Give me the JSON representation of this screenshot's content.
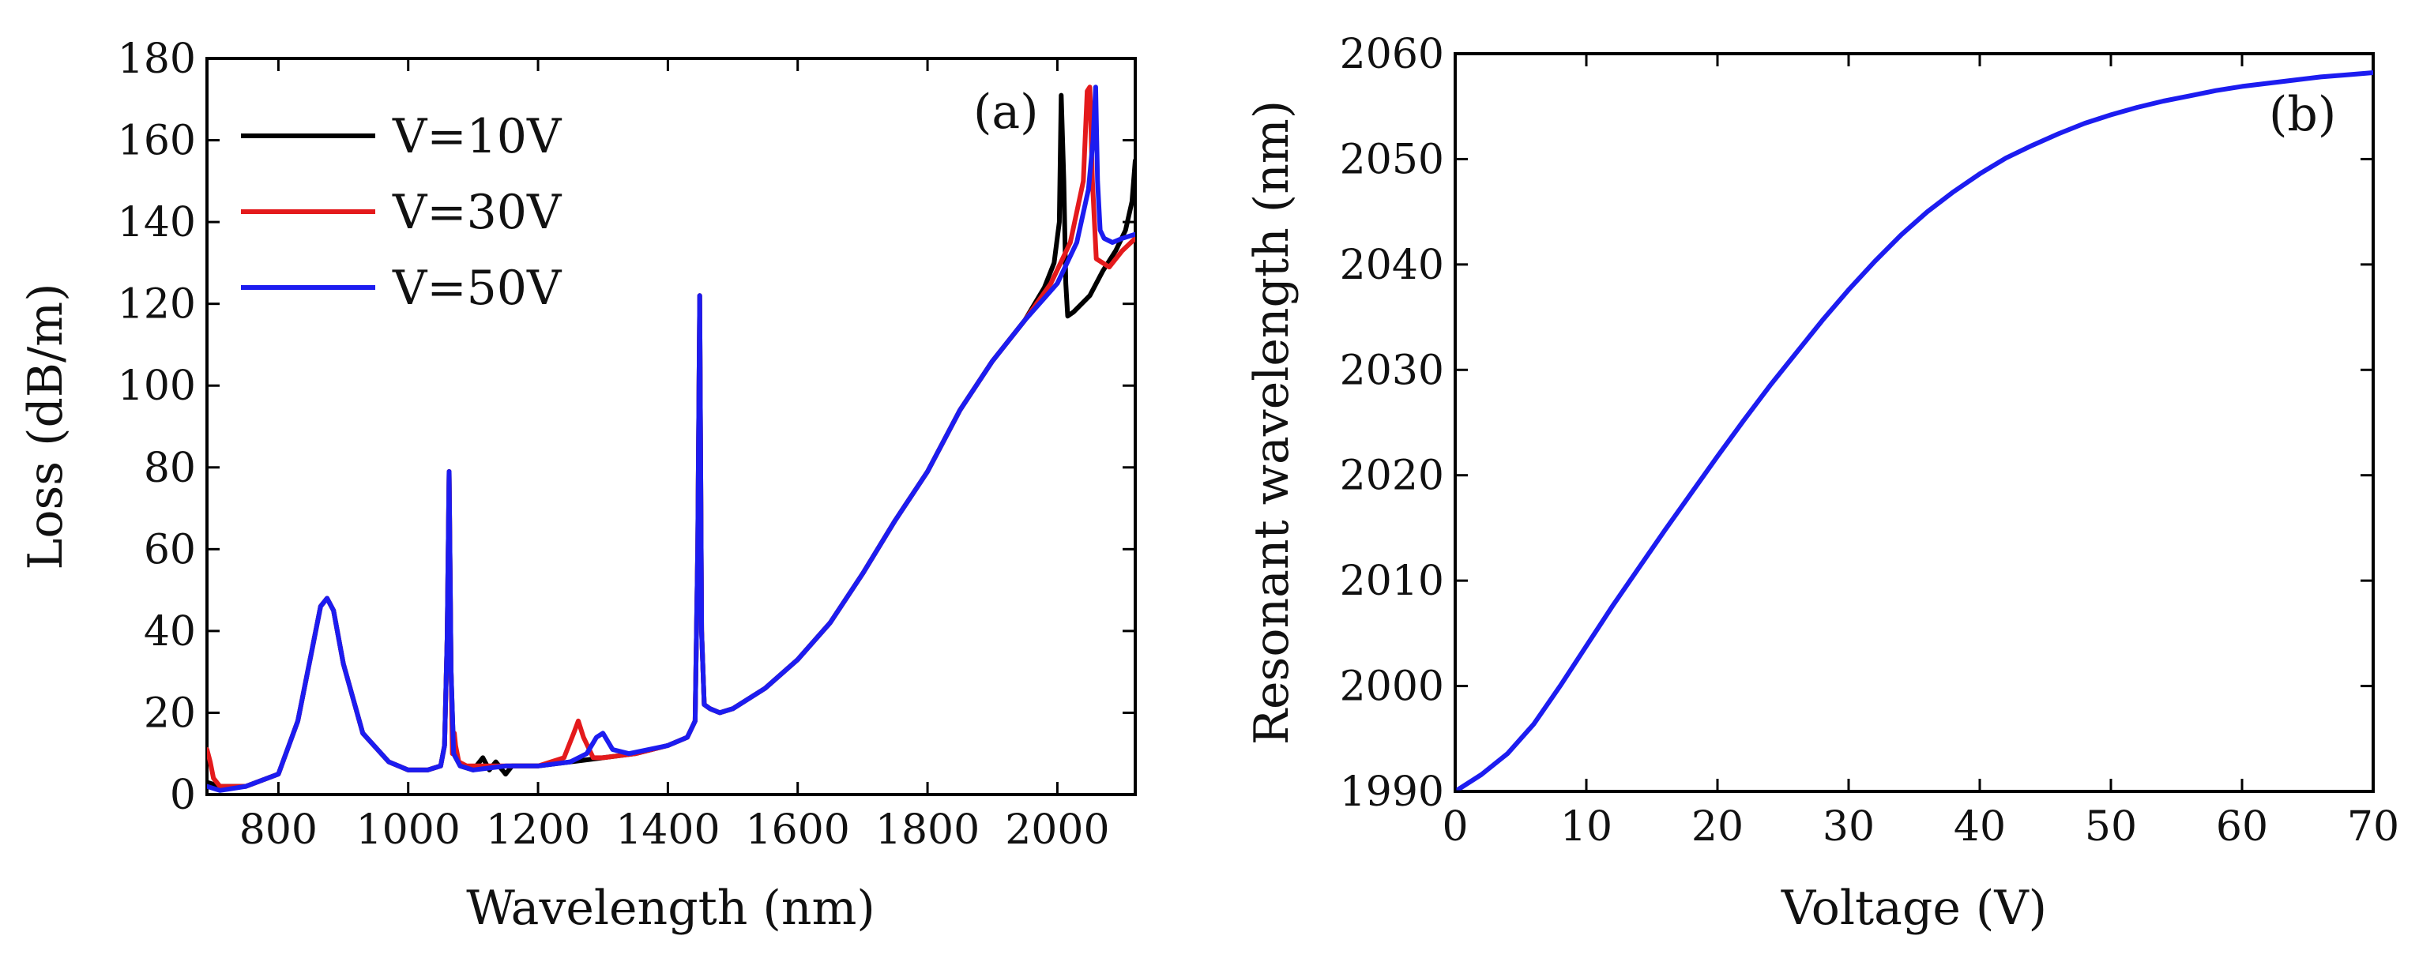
{
  "chart_data": [
    {
      "type": "line",
      "panel": "(a)",
      "xlabel": "Wavelength (nm)",
      "ylabel": "Loss (dB/m)",
      "xlim": [
        690,
        2120
      ],
      "ylim": [
        0,
        180
      ],
      "xticks": [
        800,
        1000,
        1200,
        1400,
        1600,
        1800,
        2000
      ],
      "yticks": [
        0,
        20,
        40,
        60,
        80,
        100,
        120,
        140,
        160,
        180
      ],
      "legend_position": "top-left",
      "series": [
        {
          "name": "V=10V",
          "color": "#000000",
          "x": [
            690,
            710,
            750,
            800,
            830,
            850,
            865,
            875,
            885,
            900,
            930,
            970,
            1000,
            1030,
            1050,
            1056,
            1060,
            1063,
            1066,
            1070,
            1080,
            1100,
            1115,
            1125,
            1135,
            1150,
            1160,
            1200,
            1250,
            1300,
            1350,
            1400,
            1430,
            1442,
            1446,
            1449,
            1452,
            1456,
            1465,
            1480,
            1500,
            1550,
            1600,
            1650,
            1700,
            1750,
            1800,
            1850,
            1900,
            1950,
            1980,
            1995,
            2003,
            2006,
            2010,
            2013,
            2016,
            2025,
            2050,
            2070,
            2090,
            2105,
            2115,
            2120
          ],
          "y": [
            3,
            2,
            2,
            5,
            18,
            34,
            46,
            48,
            45,
            32,
            15,
            8,
            6,
            6,
            7,
            12,
            38,
            79,
            30,
            10,
            7,
            6,
            9,
            6,
            8,
            5,
            7,
            7,
            8,
            9,
            10,
            12,
            14,
            18,
            60,
            122,
            40,
            22,
            21,
            20,
            21,
            26,
            33,
            42,
            54,
            67,
            79,
            94,
            106,
            116,
            124,
            130,
            140,
            171,
            150,
            125,
            117,
            118,
            122,
            128,
            133,
            138,
            145,
            155
          ]
        },
        {
          "name": "V=30V",
          "color": "#e41a1c",
          "x": [
            690,
            695,
            700,
            710,
            750,
            800,
            830,
            850,
            865,
            875,
            885,
            900,
            930,
            970,
            1000,
            1030,
            1050,
            1056,
            1060,
            1063,
            1066,
            1068,
            1071,
            1073,
            1078,
            1090,
            1150,
            1200,
            1240,
            1255,
            1262,
            1270,
            1285,
            1300,
            1350,
            1400,
            1430,
            1442,
            1446,
            1449,
            1452,
            1456,
            1465,
            1480,
            1500,
            1550,
            1600,
            1650,
            1700,
            1750,
            1800,
            1850,
            1900,
            1950,
            1990,
            2020,
            2040,
            2046,
            2050,
            2054,
            2060,
            2080,
            2100,
            2120
          ],
          "y": [
            11,
            8,
            4,
            2,
            2,
            5,
            18,
            34,
            46,
            48,
            45,
            32,
            15,
            8,
            6,
            6,
            7,
            12,
            38,
            79,
            30,
            10,
            15,
            12,
            8,
            7,
            7,
            7,
            9,
            15,
            18,
            14,
            9,
            9,
            10,
            12,
            14,
            18,
            60,
            122,
            40,
            22,
            21,
            20,
            21,
            26,
            33,
            42,
            54,
            67,
            79,
            94,
            106,
            116,
            125,
            135,
            150,
            172,
            173,
            150,
            131,
            129,
            133,
            136
          ]
        },
        {
          "name": "V=50V",
          "color": "#1c1cf0",
          "x": [
            690,
            710,
            750,
            800,
            830,
            850,
            865,
            875,
            885,
            900,
            930,
            970,
            1000,
            1030,
            1050,
            1056,
            1060,
            1063,
            1066,
            1070,
            1080,
            1100,
            1150,
            1200,
            1250,
            1275,
            1290,
            1300,
            1315,
            1340,
            1400,
            1430,
            1442,
            1446,
            1449,
            1452,
            1456,
            1465,
            1480,
            1500,
            1550,
            1600,
            1650,
            1700,
            1750,
            1800,
            1850,
            1900,
            1950,
            2000,
            2030,
            2048,
            2055,
            2059,
            2062,
            2066,
            2072,
            2085,
            2100,
            2120
          ],
          "y": [
            2,
            1,
            2,
            5,
            18,
            34,
            46,
            48,
            45,
            32,
            15,
            8,
            6,
            6,
            7,
            12,
            38,
            79,
            30,
            10,
            7,
            6,
            7,
            7,
            8,
            10,
            14,
            15,
            11,
            10,
            12,
            14,
            18,
            60,
            122,
            40,
            22,
            21,
            20,
            21,
            26,
            33,
            42,
            54,
            67,
            79,
            94,
            106,
            116,
            125,
            135,
            148,
            160,
            173,
            150,
            138,
            136,
            135,
            136,
            137
          ]
        }
      ]
    },
    {
      "type": "line",
      "panel": "(b)",
      "xlabel": "Voltage (V)",
      "ylabel": "Resonant wavelength (nm)",
      "xlim": [
        0,
        70
      ],
      "ylim": [
        1990,
        2060
      ],
      "xticks": [
        0,
        10,
        20,
        30,
        40,
        50,
        60,
        70
      ],
      "yticks": [
        1990,
        2000,
        2010,
        2020,
        2030,
        2040,
        2050,
        2060
      ],
      "series": [
        {
          "name": "Resonant wavelength",
          "color": "#1c1cf0",
          "x": [
            0,
            2,
            4,
            6,
            8,
            10,
            12,
            14,
            16,
            18,
            20,
            22,
            24,
            26,
            28,
            30,
            32,
            34,
            36,
            38,
            40,
            42,
            44,
            46,
            48,
            50,
            52,
            54,
            56,
            58,
            60,
            62,
            64,
            66,
            68,
            70
          ],
          "y": [
            1990,
            1991.6,
            1993.6,
            1996.4,
            2000,
            2003.8,
            2007.6,
            2011.2,
            2014.8,
            2018.3,
            2021.8,
            2025.2,
            2028.5,
            2031.6,
            2034.7,
            2037.6,
            2040.3,
            2042.8,
            2045,
            2046.9,
            2048.6,
            2050.1,
            2051.3,
            2052.4,
            2053.4,
            2054.2,
            2054.9,
            2055.5,
            2056,
            2056.5,
            2056.9,
            2057.2,
            2057.5,
            2057.8,
            2058,
            2058.2
          ]
        }
      ]
    }
  ]
}
